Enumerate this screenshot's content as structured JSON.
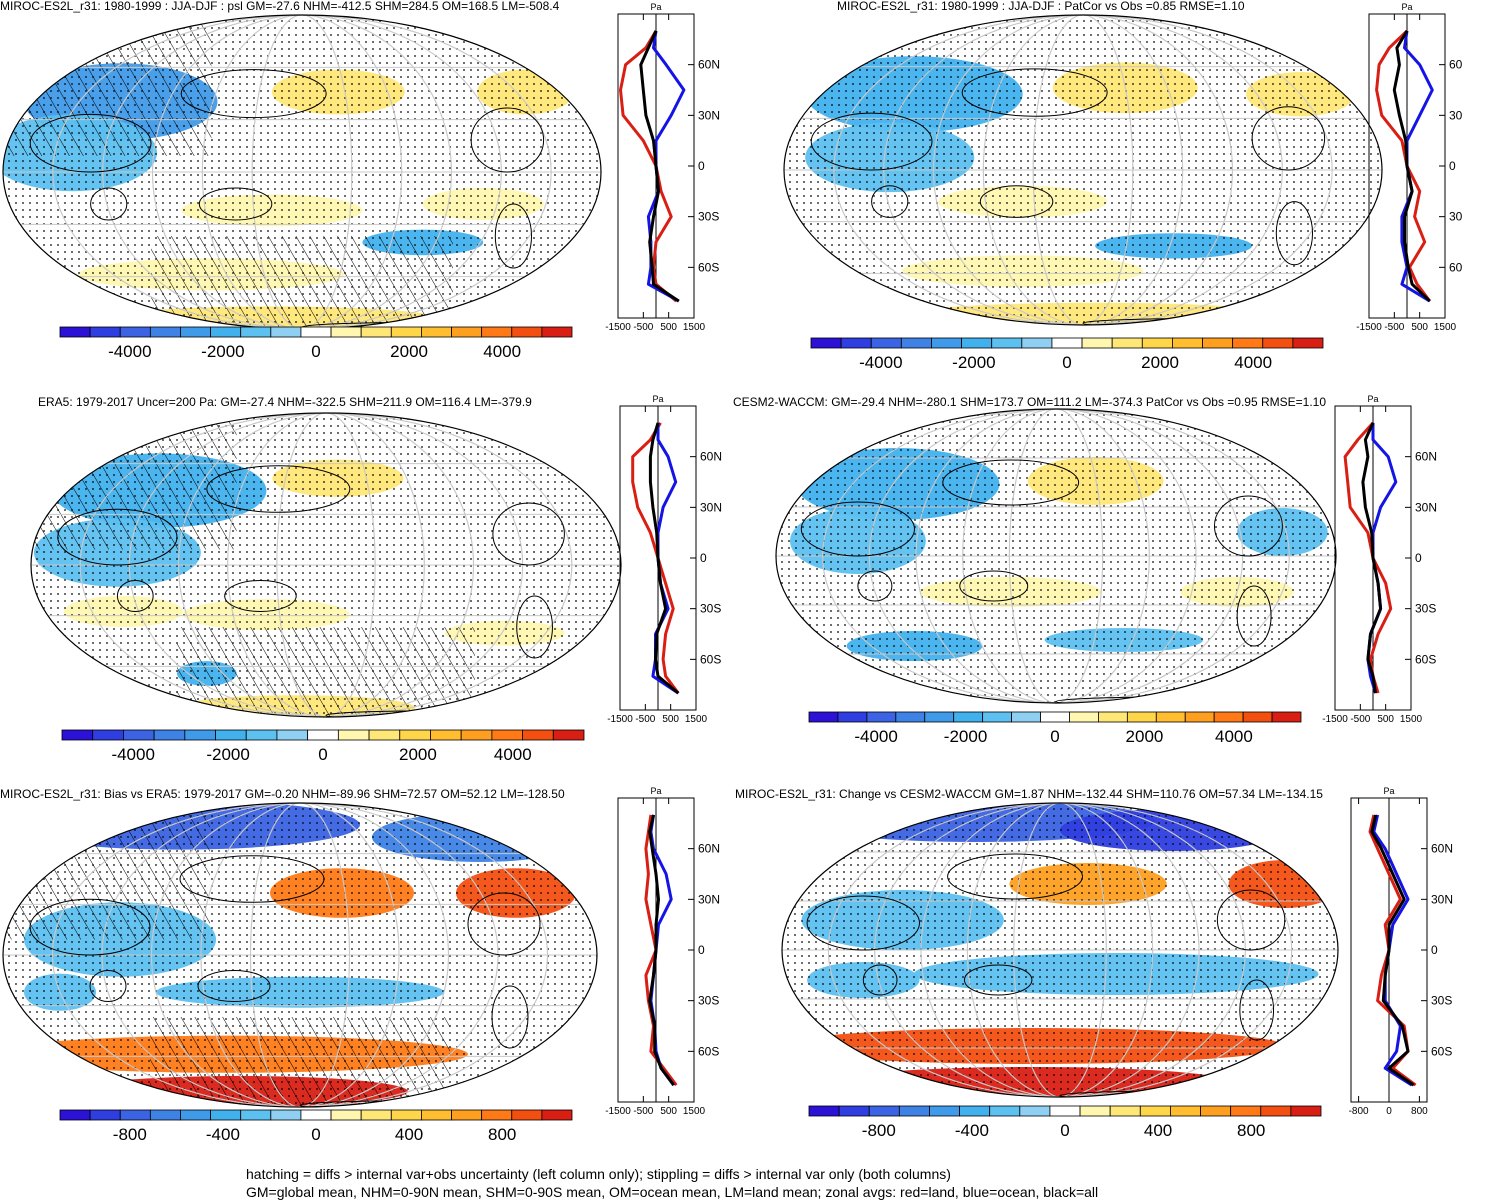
{
  "colors": {
    "scale": [
      "#2b12d6",
      "#2f3ee0",
      "#3b63e3",
      "#3e82e6",
      "#3f9ae9",
      "#41b1ee",
      "#5cc0f0",
      "#8fd0f2",
      "#ffffff",
      "#fff7b0",
      "#ffe777",
      "#ffd64a",
      "#ffbd2f",
      "#ff9f20",
      "#ff7a16",
      "#f34f10",
      "#d91f14"
    ],
    "land": "#d91f14",
    "ocean": "#1414e6",
    "all": "#000000",
    "grid": "#c8c8c8"
  },
  "panels": [
    {
      "title": "MIROC-ES2L_r31: 1980-1999 : JJA-DJF : psl GM=-27.6 NHM=-412.5 SHM=284.5 OM=168.5 LM=-508.4",
      "colorbar_ticks": [
        "-4000",
        "-2000",
        "0",
        "2000",
        "4000"
      ],
      "zonal_ticks": [
        "-1500",
        "-500",
        "500",
        "1500"
      ],
      "lat_labels": [
        "60N",
        "30N",
        "0",
        "30S",
        "60S"
      ],
      "unit": "Pa"
    },
    {
      "title": "MIROC-ES2L_r31: 1980-1999 : JJA-DJF : PatCor vs Obs =0.85 RMSE=1.10",
      "colorbar_ticks": [
        "-4000",
        "-2000",
        "0",
        "2000",
        "4000"
      ],
      "zonal_ticks": [
        "-1500",
        "-500",
        "500",
        "1500"
      ],
      "lat_labels": [
        "60",
        "30",
        "0",
        "30",
        "60"
      ],
      "unit": "Pa"
    },
    {
      "title": "ERA5: 1979-2017 Uncer=200 Pa: GM=-27.4 NHM=-322.5 SHM=211.9 OM=116.4 LM=-379.9",
      "colorbar_ticks": [
        "-4000",
        "-2000",
        "0",
        "2000",
        "4000"
      ],
      "zonal_ticks": [
        "-1500",
        "-500",
        "500",
        "1500"
      ],
      "lat_labels": [
        "60N",
        "30N",
        "0",
        "30S",
        "60S"
      ],
      "unit": "Pa"
    },
    {
      "title": "CESM2-WACCM: GM=-29.4 NHM=-280.1 SHM=173.7 OM=111.2 LM=-374.3 PatCor vs Obs =0.95 RMSE=1.10",
      "colorbar_ticks": [
        "-4000",
        "-2000",
        "0",
        "2000",
        "4000"
      ],
      "zonal_ticks": [
        "-1500",
        "-500",
        "500",
        "1500"
      ],
      "lat_labels": [
        "60N",
        "30N",
        "0",
        "30S",
        "60S"
      ],
      "unit": "Pa"
    },
    {
      "title": "MIROC-ES2L_r31: Bias vs ERA5: 1979-2017 GM=-0.20 NHM=-89.96 SHM=72.57 OM=52.12 LM=-128.50",
      "colorbar_ticks": [
        "-800",
        "-400",
        "0",
        "400",
        "800"
      ],
      "zonal_ticks": [
        "-1500",
        "-500",
        "500",
        "1500"
      ],
      "lat_labels": [
        "60N",
        "30N",
        "0",
        "30S",
        "60S"
      ],
      "unit": "Pa"
    },
    {
      "title": "MIROC-ES2L_r31: Change vs CESM2-WACCM GM=1.87 NHM=-132.44 SHM=110.76 OM=57.34 LM=-134.15",
      "colorbar_ticks": [
        "-800",
        "-400",
        "0",
        "400",
        "800"
      ],
      "zonal_ticks": [
        "-800",
        "0",
        "800"
      ],
      "lat_labels": [
        "60N",
        "30N",
        "0",
        "30S",
        "60S"
      ],
      "unit": "Pa"
    }
  ],
  "footnote": {
    "line1": "hatching = diffs > internal var+obs uncertainty (left column only); stippling = diffs > internal var only (both columns)",
    "line2": "GM=global mean, NHM=0-90N mean, SHM=0-90S mean, OM=ocean mean, LM=land mean; zonal avgs: red=land, blue=ocean, black=all"
  },
  "chart_data": [
    {
      "type": "heatmap",
      "title": "MIROC-ES2L_r31: 1980-1999 : JJA-DJF : psl GM=-27.6 NHM=-412.5 SHM=284.5 OM=168.5 LM=-508.4",
      "colorbar_range": [
        -5500,
        5500
      ],
      "colorbar_ticks": [
        -4000,
        -2000,
        0,
        2000,
        4000
      ],
      "zonal_mean": {
        "xlim": [
          -1500,
          1500
        ],
        "lat": [
          80,
          70,
          60,
          45,
          30,
          15,
          0,
          -15,
          -30,
          -45,
          -60,
          -70,
          -80
        ],
        "land": [
          0,
          -400,
          -1200,
          -1400,
          -1300,
          -500,
          0,
          200,
          600,
          0,
          -100,
          0,
          800
        ],
        "ocean": [
          0,
          -100,
          400,
          1100,
          600,
          0,
          0,
          100,
          -300,
          -200,
          -200,
          -300,
          900
        ],
        "all": [
          0,
          -300,
          -600,
          -500,
          -400,
          -100,
          0,
          100,
          -100,
          -250,
          -150,
          -100,
          900
        ]
      }
    },
    {
      "type": "heatmap",
      "title": "MIROC-ES2L_r31: 1980-1999 : JJA-DJF : PatCor vs Obs =0.85 RMSE=1.10",
      "colorbar_range": [
        -5500,
        5500
      ],
      "colorbar_ticks": [
        -4000,
        -2000,
        0,
        2000,
        4000
      ],
      "zonal_mean": {
        "xlim": [
          -1500,
          1500
        ],
        "lat": [
          80,
          70,
          60,
          45,
          30,
          15,
          0,
          -15,
          -30,
          -45,
          -60,
          -70,
          -80
        ],
        "land": [
          0,
          -700,
          -1100,
          -1200,
          -1000,
          -200,
          0,
          500,
          300,
          700,
          100,
          400,
          900
        ],
        "ocean": [
          0,
          -100,
          500,
          1000,
          500,
          0,
          0,
          200,
          -200,
          -200,
          0,
          -200,
          900
        ],
        "all": [
          0,
          -400,
          -300,
          -500,
          -300,
          -50,
          0,
          200,
          -100,
          -100,
          50,
          200,
          900
        ]
      }
    },
    {
      "type": "heatmap",
      "title": "ERA5: 1979-2017 Uncer=200 Pa: GM=-27.4 NHM=-322.5 SHM=211.9 OM=116.4 LM=-379.9",
      "colorbar_range": [
        -5500,
        5500
      ],
      "colorbar_ticks": [
        -4000,
        -2000,
        0,
        2000,
        4000
      ],
      "zonal_mean": {
        "xlim": [
          -1500,
          1500
        ],
        "lat": [
          80,
          70,
          60,
          45,
          30,
          15,
          0,
          -15,
          -30,
          -45,
          -60,
          -70,
          -80
        ],
        "land": [
          100,
          -300,
          -1000,
          -1000,
          -800,
          -300,
          0,
          300,
          600,
          300,
          200,
          300,
          800
        ],
        "ocean": [
          0,
          0,
          400,
          700,
          200,
          0,
          0,
          100,
          400,
          -100,
          -100,
          -200,
          800
        ],
        "all": [
          0,
          -200,
          -300,
          -300,
          -200,
          -50,
          0,
          100,
          300,
          -50,
          -100,
          0,
          800
        ]
      }
    },
    {
      "type": "heatmap",
      "title": "CESM2-WACCM: GM=-29.4 NHM=-280.1 SHM=173.7 OM=111.2 LM=-374.3 PatCor vs Obs =0.95 RMSE=1.10",
      "colorbar_range": [
        -5500,
        5500
      ],
      "colorbar_ticks": [
        -4000,
        -2000,
        0,
        2000,
        4000
      ],
      "zonal_mean": {
        "xlim": [
          -1500,
          1500
        ],
        "lat": [
          80,
          70,
          60,
          45,
          30,
          15,
          0,
          -15,
          -30,
          -45,
          -60,
          -70,
          -80
        ],
        "land": [
          0,
          -600,
          -1100,
          -1000,
          -900,
          -200,
          0,
          500,
          700,
          200,
          -100,
          0,
          200
        ],
        "ocean": [
          0,
          0,
          600,
          900,
          300,
          0,
          0,
          200,
          300,
          -100,
          -200,
          -100,
          100
        ],
        "all": [
          0,
          -300,
          -200,
          -400,
          -300,
          -50,
          0,
          200,
          300,
          -100,
          -200,
          0,
          100
        ]
      }
    },
    {
      "type": "heatmap",
      "title": "MIROC-ES2L_r31: Bias vs ERA5: 1979-2017 GM=-0.20 NHM=-89.96 SHM=72.57 OM=52.12 LM=-128.50",
      "colorbar_range": [
        -1100,
        1100
      ],
      "colorbar_ticks": [
        -800,
        -400,
        0,
        400,
        800
      ],
      "zonal_mean": {
        "xlim": [
          -1500,
          1500
        ],
        "lat": [
          80,
          70,
          60,
          45,
          30,
          15,
          0,
          -15,
          -30,
          -45,
          -60,
          -70,
          -80
        ],
        "land": [
          -200,
          -300,
          -400,
          -300,
          -400,
          -200,
          0,
          -400,
          -300,
          -100,
          -200,
          300,
          800
        ],
        "ocean": [
          -100,
          -200,
          -100,
          400,
          600,
          100,
          0,
          -100,
          -200,
          -50,
          0,
          200,
          700
        ],
        "all": [
          -100,
          -250,
          -150,
          0,
          100,
          0,
          0,
          -100,
          -250,
          -50,
          -50,
          200,
          700
        ]
      }
    },
    {
      "type": "heatmap",
      "title": "MIROC-ES2L_r31: Change vs CESM2-WACCM GM=1.87 NHM=-132.44 SHM=110.76 OM=57.34 LM=-134.15",
      "colorbar_range": [
        -1100,
        1100
      ],
      "colorbar_ticks": [
        -800,
        -400,
        0,
        400,
        800
      ],
      "zonal_mean": {
        "xlim": [
          -1000,
          1000
        ],
        "lat": [
          80,
          70,
          60,
          45,
          30,
          15,
          0,
          -15,
          -30,
          -45,
          -60,
          -70,
          -80
        ],
        "land": [
          -400,
          -500,
          -300,
          0,
          300,
          -100,
          0,
          -200,
          -300,
          400,
          500,
          100,
          700
        ],
        "ocean": [
          -300,
          -400,
          -100,
          200,
          500,
          100,
          0,
          -100,
          -100,
          300,
          200,
          -100,
          600
        ],
        "all": [
          -350,
          -450,
          -200,
          100,
          400,
          0,
          0,
          -100,
          -150,
          350,
          500,
          0,
          650
        ]
      }
    }
  ]
}
